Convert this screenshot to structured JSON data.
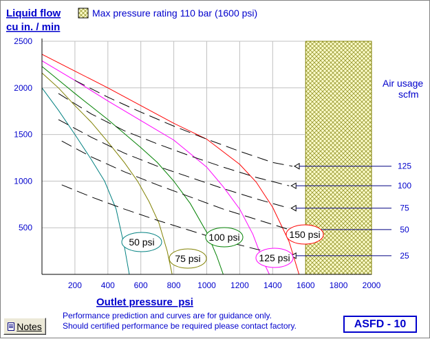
{
  "window": {
    "notes_button": "Notes",
    "disclaimer_line1": "Performance prediction and curves are for guidance only.",
    "disclaimer_line2": "Should certified performance be required please contact factory.",
    "model_label": "ASFD - 10"
  },
  "chart_data": {
    "type": "line",
    "title": "",
    "ylabel_line1": "Liquid flow",
    "ylabel_line2": "cu in. / min",
    "xlabel": "Outlet pressure  psi",
    "xlim": [
      0,
      2000
    ],
    "ylim": [
      0,
      2500
    ],
    "xticks": [
      200,
      400,
      600,
      800,
      1000,
      1200,
      1400,
      1600,
      1800,
      2000
    ],
    "yticks": [
      500,
      1000,
      1500,
      2000,
      2500
    ],
    "legend": {
      "label": "Max pressure rating 110 bar (1600 psi)",
      "region_start_psi": 1600,
      "region_end_psi": 2000
    },
    "air_usage_title_line1": "Air usage",
    "air_usage_title_line2": "scfm",
    "series": [
      {
        "name": "50 psi",
        "color": "#008080",
        "x": [
          0,
          100,
          200,
          300,
          380,
          450,
          500,
          530
        ],
        "y": [
          2000,
          1760,
          1500,
          1230,
          1000,
          700,
          300,
          0
        ]
      },
      {
        "name": "75 psi",
        "color": "#808000",
        "x": [
          0,
          100,
          200,
          300,
          400,
          500,
          580,
          650,
          710,
          760,
          790
        ],
        "y": [
          2160,
          2000,
          1810,
          1630,
          1420,
          1200,
          1000,
          780,
          550,
          250,
          0
        ]
      },
      {
        "name": "100 psi",
        "color": "#008000",
        "x": [
          0,
          200,
          400,
          600,
          700,
          800,
          900,
          1000,
          1060,
          1100
        ],
        "y": [
          2230,
          1940,
          1660,
          1360,
          1200,
          1000,
          760,
          450,
          200,
          0
        ]
      },
      {
        "name": "125 psi",
        "color": "#ff00ff",
        "x": [
          0,
          200,
          400,
          600,
          800,
          1000,
          1100,
          1200,
          1280,
          1340,
          1380
        ],
        "y": [
          2290,
          2080,
          1860,
          1650,
          1440,
          1150,
          940,
          700,
          430,
          150,
          0
        ]
      },
      {
        "name": "150 psi",
        "color": "#ff0000",
        "x": [
          0,
          200,
          400,
          600,
          800,
          1000,
          1200,
          1300,
          1400,
          1500,
          1560
        ],
        "y": [
          2360,
          2180,
          2000,
          1810,
          1620,
          1450,
          1180,
          990,
          720,
          350,
          0
        ]
      }
    ],
    "air_usage": [
      {
        "label": "125",
        "x": [
          200,
          400,
          600,
          800,
          1000,
          1200,
          1400,
          1520
        ],
        "y": [
          2080,
          1900,
          1740,
          1590,
          1450,
          1320,
          1200,
          1160
        ]
      },
      {
        "label": "100",
        "x": [
          100,
          300,
          500,
          700,
          900,
          1100,
          1300,
          1500
        ],
        "y": [
          1940,
          1720,
          1540,
          1400,
          1270,
          1150,
          1040,
          950
        ]
      },
      {
        "label": "75",
        "x": [
          100,
          300,
          500,
          700,
          900,
          1100,
          1300,
          1500
        ],
        "y": [
          1660,
          1470,
          1300,
          1160,
          1040,
          920,
          810,
          710
        ]
      },
      {
        "label": "50",
        "x": [
          120,
          300,
          500,
          700,
          900,
          1100,
          1300,
          1500
        ],
        "y": [
          1430,
          1260,
          1100,
          960,
          830,
          700,
          590,
          480
        ]
      },
      {
        "label": "25",
        "x": [
          120,
          300,
          500,
          700,
          900,
          1100,
          1300,
          1500
        ],
        "y": [
          960,
          830,
          700,
          580,
          470,
          360,
          270,
          200
        ]
      }
    ]
  }
}
